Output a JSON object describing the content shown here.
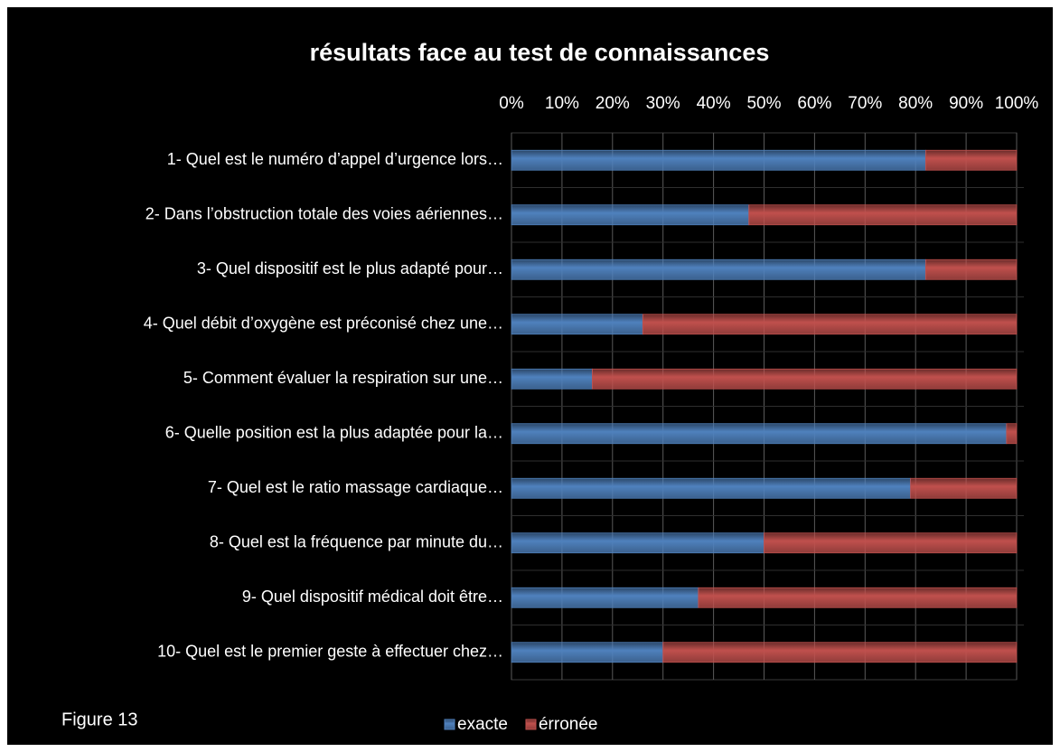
{
  "chart_data": {
    "type": "hbar_stacked",
    "title": "résultats face au test de connaissances",
    "annotation": "Figure 13",
    "categories": [
      "1- Quel est le numéro d’appel d’urgence lors…",
      "2- Dans l’obstruction totale des voies aériennes…",
      "3- Quel dispositif est le plus adapté pour…",
      "4- Quel débit d’oxygène est préconisé chez une…",
      "5- Comment évaluer la respiration sur une…",
      "6- Quelle position est la plus adaptée pour la…",
      "7- Quel est le ratio massage cardiaque…",
      "8- Quel est la fréquence par minute du…",
      "9- Quel dispositif médical doit être…",
      "10- Quel est le premier geste à effectuer chez…"
    ],
    "series": [
      {
        "name": "exacte",
        "color": "#4f81bd",
        "values": [
          82,
          47,
          82,
          26,
          16,
          98,
          79,
          50,
          37,
          30
        ]
      },
      {
        "name": "érronée",
        "color": "#c0504d",
        "values": [
          18,
          53,
          18,
          74,
          84,
          2,
          21,
          50,
          63,
          70
        ]
      }
    ],
    "xlim": [
      0,
      100
    ],
    "xticks": [
      {
        "value": 0,
        "label": "0%"
      },
      {
        "value": 10,
        "label": "10%"
      },
      {
        "value": 20,
        "label": "20%"
      },
      {
        "value": 30,
        "label": "30%"
      },
      {
        "value": 40,
        "label": "40%"
      },
      {
        "value": 50,
        "label": "50%"
      },
      {
        "value": 60,
        "label": "60%"
      },
      {
        "value": 70,
        "label": "70%"
      },
      {
        "value": 80,
        "label": "80%"
      },
      {
        "value": 90,
        "label": "90%"
      },
      {
        "value": 100,
        "label": "100%"
      }
    ],
    "grid": true,
    "legend": "bottom"
  }
}
